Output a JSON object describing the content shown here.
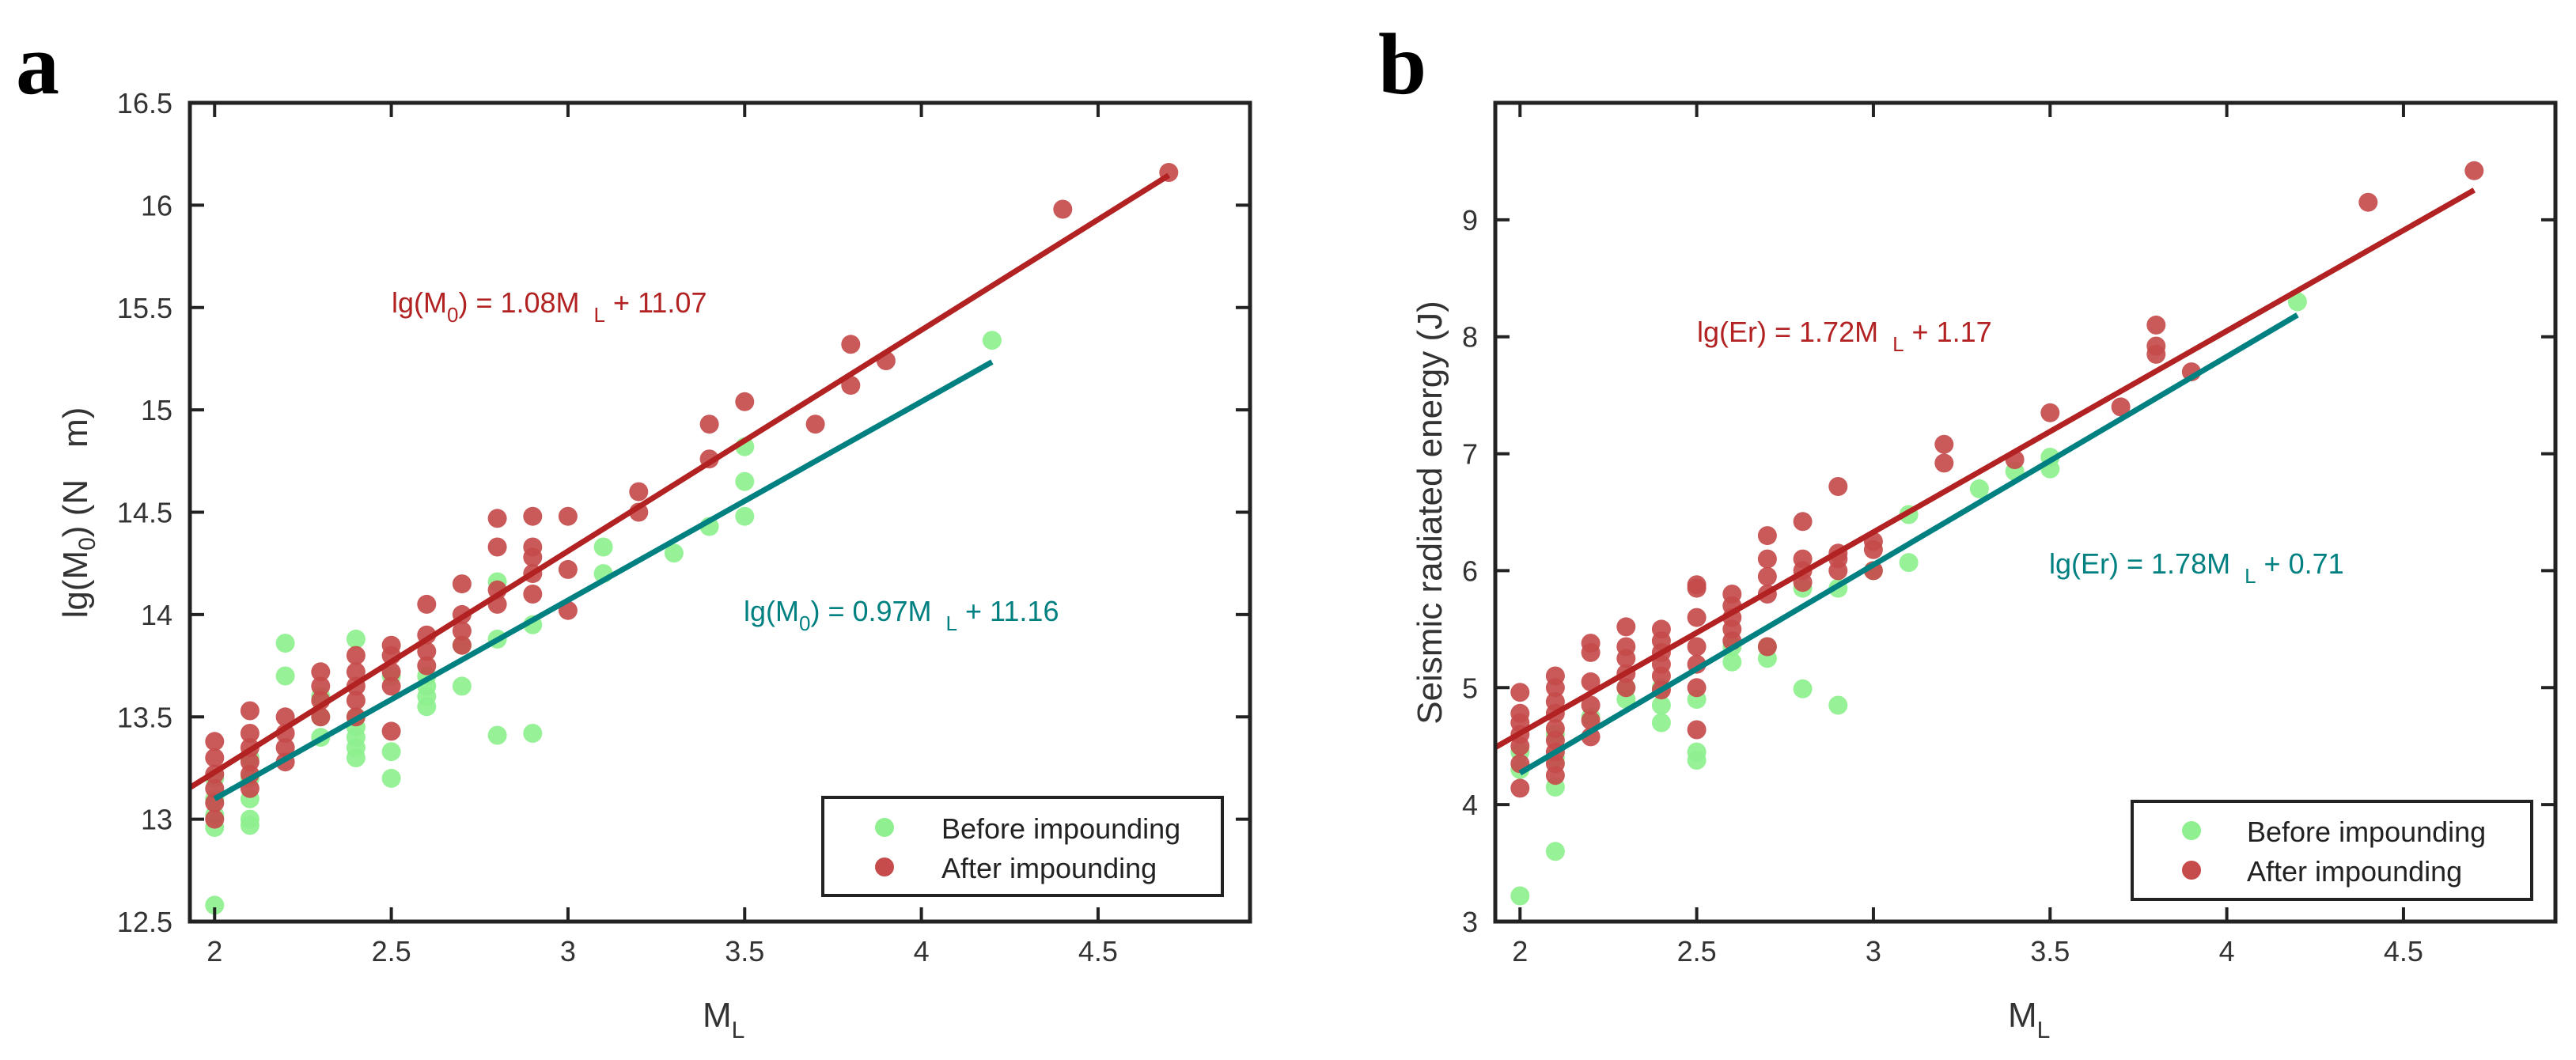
{
  "chart_data": [
    {
      "type": "scatter",
      "panel": "a",
      "xlabel": "M",
      "xlabel_sub": "L",
      "ylabel_parts": [
        "lg(M",
        "0",
        ") (N",
        "m)"
      ],
      "xlim": [
        1.93,
        4.93
      ],
      "ylim": [
        12.5,
        16.5
      ],
      "xticks": [
        2,
        2.5,
        3,
        3.5,
        4,
        4.5
      ],
      "yticks": [
        12.5,
        13,
        13.5,
        14,
        14.5,
        15,
        15.5,
        16,
        16.5
      ],
      "grid": false,
      "legend_position": "bottom-right",
      "series": [
        {
          "name": "Before impounding",
          "color": "#8ef08e",
          "points": [
            [
              2.0,
              12.58
            ],
            [
              2.0,
              12.96
            ],
            [
              2.0,
              13.02
            ],
            [
              2.0,
              13.1
            ],
            [
              2.0,
              13.2
            ],
            [
              2.1,
              12.97
            ],
            [
              2.1,
              13.0
            ],
            [
              2.1,
              13.1
            ],
            [
              2.1,
              13.2
            ],
            [
              2.1,
              13.3
            ],
            [
              2.2,
              13.7
            ],
            [
              2.2,
              13.86
            ],
            [
              2.3,
              13.4
            ],
            [
              2.3,
              13.5
            ],
            [
              2.3,
              13.6
            ],
            [
              2.4,
              13.3
            ],
            [
              2.4,
              13.35
            ],
            [
              2.4,
              13.4
            ],
            [
              2.4,
              13.45
            ],
            [
              2.4,
              13.5
            ],
            [
              2.4,
              13.88
            ],
            [
              2.5,
              13.2
            ],
            [
              2.5,
              13.33
            ],
            [
              2.5,
              13.7
            ],
            [
              2.6,
              13.55
            ],
            [
              2.6,
              13.6
            ],
            [
              2.6,
              13.65
            ],
            [
              2.6,
              13.7
            ],
            [
              2.7,
              13.65
            ],
            [
              2.7,
              13.85
            ],
            [
              2.8,
              13.41
            ],
            [
              2.8,
              13.88
            ],
            [
              2.8,
              14.16
            ],
            [
              2.9,
              13.42
            ],
            [
              2.9,
              13.95
            ],
            [
              3.1,
              14.2
            ],
            [
              3.1,
              14.33
            ],
            [
              3.3,
              14.3
            ],
            [
              3.4,
              14.43
            ],
            [
              3.5,
              14.48
            ],
            [
              3.5,
              14.65
            ],
            [
              3.5,
              14.82
            ],
            [
              4.2,
              15.34
            ]
          ]
        },
        {
          "name": "After impounding",
          "color": "#c64b4b",
          "points": [
            [
              2.0,
              13.0
            ],
            [
              2.0,
              13.08
            ],
            [
              2.0,
              13.15
            ],
            [
              2.0,
              13.22
            ],
            [
              2.0,
              13.3
            ],
            [
              2.0,
              13.38
            ],
            [
              2.1,
              13.15
            ],
            [
              2.1,
              13.22
            ],
            [
              2.1,
              13.28
            ],
            [
              2.1,
              13.35
            ],
            [
              2.1,
              13.42
            ],
            [
              2.1,
              13.53
            ],
            [
              2.2,
              13.28
            ],
            [
              2.2,
              13.35
            ],
            [
              2.2,
              13.42
            ],
            [
              2.2,
              13.5
            ],
            [
              2.3,
              13.5
            ],
            [
              2.3,
              13.58
            ],
            [
              2.3,
              13.65
            ],
            [
              2.3,
              13.72
            ],
            [
              2.4,
              13.5
            ],
            [
              2.4,
              13.58
            ],
            [
              2.4,
              13.65
            ],
            [
              2.4,
              13.72
            ],
            [
              2.4,
              13.8
            ],
            [
              2.5,
              13.43
            ],
            [
              2.5,
              13.65
            ],
            [
              2.5,
              13.72
            ],
            [
              2.5,
              13.8
            ],
            [
              2.5,
              13.85
            ],
            [
              2.6,
              13.75
            ],
            [
              2.6,
              13.82
            ],
            [
              2.6,
              13.9
            ],
            [
              2.6,
              14.05
            ],
            [
              2.7,
              13.85
            ],
            [
              2.7,
              13.92
            ],
            [
              2.7,
              14.0
            ],
            [
              2.7,
              14.15
            ],
            [
              2.8,
              14.05
            ],
            [
              2.8,
              14.12
            ],
            [
              2.8,
              14.33
            ],
            [
              2.8,
              14.47
            ],
            [
              2.9,
              14.1
            ],
            [
              2.9,
              14.2
            ],
            [
              2.9,
              14.28
            ],
            [
              2.9,
              14.33
            ],
            [
              2.9,
              14.48
            ],
            [
              3.0,
              14.02
            ],
            [
              3.0,
              14.22
            ],
            [
              3.0,
              14.48
            ],
            [
              3.2,
              14.5
            ],
            [
              3.2,
              14.6
            ],
            [
              3.4,
              14.76
            ],
            [
              3.4,
              14.93
            ],
            [
              3.5,
              15.04
            ],
            [
              3.7,
              14.93
            ],
            [
              3.8,
              15.12
            ],
            [
              3.8,
              15.32
            ],
            [
              3.9,
              15.24
            ],
            [
              4.4,
              15.98
            ],
            [
              4.7,
              16.16
            ]
          ]
        }
      ],
      "fit_lines": [
        {
          "series": "After impounding",
          "slope": 1.08,
          "intercept": 11.07,
          "x_range": [
            1.93,
            4.7
          ],
          "color": "#b22222",
          "label_parts": [
            "lg(M",
            "0",
            ") = 1.08M",
            "L",
            " + 11.07"
          ]
        },
        {
          "series": "Before impounding",
          "slope": 0.97,
          "intercept": 11.16,
          "x_range": [
            2.0,
            4.2
          ],
          "color": "#008080",
          "label_parts": [
            "lg(M",
            "0",
            ") = 0.97M",
            "L",
            " + 11.16"
          ]
        }
      ]
    },
    {
      "type": "scatter",
      "panel": "b",
      "xlabel": "M",
      "xlabel_sub": "L",
      "ylabel": "Seismic radiated energy (J)",
      "xlim": [
        1.93,
        4.93
      ],
      "ylim": [
        3,
        10
      ],
      "xticks": [
        2,
        2.5,
        3,
        3.5,
        4,
        4.5
      ],
      "yticks": [
        3,
        4,
        5,
        6,
        7,
        8,
        9
      ],
      "grid": false,
      "legend_position": "bottom-right",
      "series": [
        {
          "name": "Before impounding",
          "color": "#8ef08e",
          "points": [
            [
              2.0,
              3.22
            ],
            [
              2.0,
              4.3
            ],
            [
              2.0,
              4.45
            ],
            [
              2.1,
              3.6
            ],
            [
              2.1,
              4.15
            ],
            [
              2.1,
              4.4
            ],
            [
              2.1,
              4.6
            ],
            [
              2.2,
              4.75
            ],
            [
              2.3,
              4.9
            ],
            [
              2.3,
              5.0
            ],
            [
              2.4,
              4.7
            ],
            [
              2.4,
              4.85
            ],
            [
              2.4,
              5.0
            ],
            [
              2.5,
              4.38
            ],
            [
              2.5,
              4.45
            ],
            [
              2.5,
              4.9
            ],
            [
              2.6,
              5.22
            ],
            [
              2.6,
              5.35
            ],
            [
              2.7,
              5.25
            ],
            [
              2.7,
              5.35
            ],
            [
              2.8,
              4.99
            ],
            [
              2.8,
              5.85
            ],
            [
              2.9,
              4.85
            ],
            [
              2.9,
              5.85
            ],
            [
              3.0,
              6.0
            ],
            [
              3.1,
              6.07
            ],
            [
              3.1,
              6.48
            ],
            [
              3.3,
              6.7
            ],
            [
              3.4,
              6.85
            ],
            [
              3.5,
              6.87
            ],
            [
              3.5,
              6.97
            ],
            [
              4.2,
              8.3
            ]
          ]
        },
        {
          "name": "After impounding",
          "color": "#c64b4b",
          "points": [
            [
              2.0,
              4.14
            ],
            [
              2.0,
              4.35
            ],
            [
              2.0,
              4.5
            ],
            [
              2.0,
              4.6
            ],
            [
              2.0,
              4.7
            ],
            [
              2.0,
              4.78
            ],
            [
              2.0,
              4.96
            ],
            [
              2.1,
              4.25
            ],
            [
              2.1,
              4.35
            ],
            [
              2.1,
              4.45
            ],
            [
              2.1,
              4.55
            ],
            [
              2.1,
              4.65
            ],
            [
              2.1,
              4.78
            ],
            [
              2.1,
              4.88
            ],
            [
              2.1,
              5.0
            ],
            [
              2.1,
              5.1
            ],
            [
              2.2,
              4.58
            ],
            [
              2.2,
              4.72
            ],
            [
              2.2,
              4.85
            ],
            [
              2.2,
              5.05
            ],
            [
              2.2,
              5.3
            ],
            [
              2.2,
              5.38
            ],
            [
              2.3,
              5.0
            ],
            [
              2.3,
              5.12
            ],
            [
              2.3,
              5.25
            ],
            [
              2.3,
              5.35
            ],
            [
              2.3,
              5.52
            ],
            [
              2.4,
              4.98
            ],
            [
              2.4,
              5.1
            ],
            [
              2.4,
              5.2
            ],
            [
              2.4,
              5.3
            ],
            [
              2.4,
              5.4
            ],
            [
              2.4,
              5.5
            ],
            [
              2.5,
              4.64
            ],
            [
              2.5,
              5.0
            ],
            [
              2.5,
              5.2
            ],
            [
              2.5,
              5.35
            ],
            [
              2.5,
              5.6
            ],
            [
              2.5,
              5.85
            ],
            [
              2.5,
              5.88
            ],
            [
              2.6,
              5.4
            ],
            [
              2.6,
              5.5
            ],
            [
              2.6,
              5.6
            ],
            [
              2.6,
              5.7
            ],
            [
              2.6,
              5.8
            ],
            [
              2.7,
              5.35
            ],
            [
              2.7,
              5.8
            ],
            [
              2.7,
              5.95
            ],
            [
              2.7,
              6.1
            ],
            [
              2.7,
              6.3
            ],
            [
              2.8,
              5.9
            ],
            [
              2.8,
              6.0
            ],
            [
              2.8,
              6.1
            ],
            [
              2.8,
              6.42
            ],
            [
              2.9,
              6.0
            ],
            [
              2.9,
              6.1
            ],
            [
              2.9,
              6.15
            ],
            [
              2.9,
              6.72
            ],
            [
              3.0,
              6.0
            ],
            [
              3.0,
              6.18
            ],
            [
              3.0,
              6.25
            ],
            [
              3.2,
              6.92
            ],
            [
              3.2,
              7.08
            ],
            [
              3.4,
              6.95
            ],
            [
              3.5,
              7.35
            ],
            [
              3.7,
              7.4
            ],
            [
              3.8,
              7.85
            ],
            [
              3.8,
              7.92
            ],
            [
              3.8,
              8.1
            ],
            [
              3.9,
              7.7
            ],
            [
              4.4,
              9.15
            ],
            [
              4.7,
              9.42
            ]
          ]
        }
      ],
      "fit_lines": [
        {
          "series": "After impounding",
          "slope": 1.72,
          "intercept": 1.17,
          "x_range": [
            1.93,
            4.7
          ],
          "color": "#b22222",
          "label_parts": [
            "lg(Er) = 1.72M",
            "L",
            " + 1.17"
          ]
        },
        {
          "series": "Before impounding",
          "slope": 1.78,
          "intercept": 0.71,
          "x_range": [
            2.0,
            4.2
          ],
          "color": "#008080",
          "label_parts": [
            "lg(Er) = 1.78M",
            "L",
            " + 0.71"
          ]
        }
      ]
    }
  ]
}
